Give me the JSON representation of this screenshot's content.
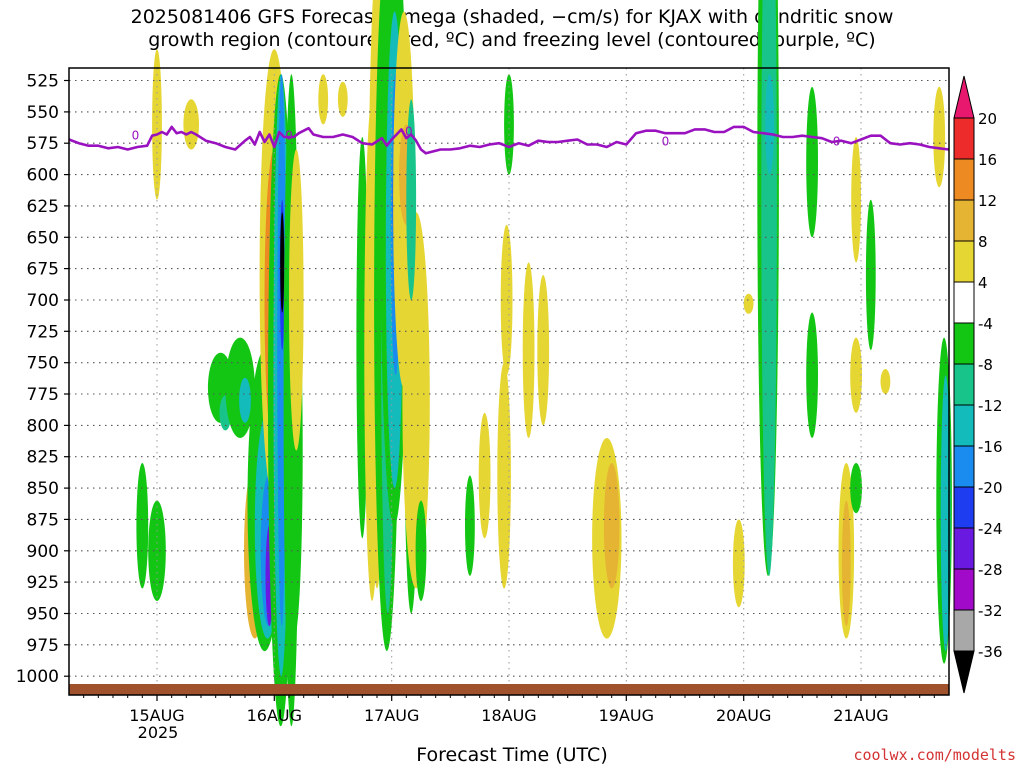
{
  "title": {
    "line1": "2025081406 GFS Forecast Omega (shaded, −cm/s) for KJAX with dendritic snow",
    "line2": "growth region (contoured, red, ºC) and freezing level (contoured, purple, ºC)"
  },
  "xlabel": "Forecast Time (UTC)",
  "credit": "coolwx.com/modelts",
  "year_label": "2025",
  "chart_data": {
    "type": "heatmap",
    "y_axis": {
      "label": "",
      "unit": "hPa",
      "inverted": true,
      "ticks": [
        525,
        550,
        575,
        600,
        625,
        650,
        675,
        700,
        725,
        750,
        775,
        800,
        825,
        850,
        875,
        900,
        925,
        950,
        975,
        1000
      ],
      "range": [
        515,
        1015
      ]
    },
    "x_axis": {
      "ticks": [
        {
          "label": "15AUG",
          "hours": 18
        },
        {
          "label": "16AUG",
          "hours": 42
        },
        {
          "label": "17AUG",
          "hours": 66
        },
        {
          "label": "18AUG",
          "hours": 90
        },
        {
          "label": "19AUG",
          "hours": 114
        },
        {
          "label": "20AUG",
          "hours": 138
        },
        {
          "label": "21AUG",
          "hours": 162
        }
      ],
      "range_hours": [
        0,
        180
      ]
    },
    "colorbar": {
      "ticks": [
        20,
        16,
        12,
        8,
        4,
        -4,
        -8,
        -12,
        -16,
        -20,
        -24,
        -28,
        -32,
        -36
      ],
      "bins": [
        {
          "from": 16,
          "to": 20,
          "color": "#ee2b2b"
        },
        {
          "from": 12,
          "to": 16,
          "color": "#ee8a22"
        },
        {
          "from": 8,
          "to": 12,
          "color": "#e6b433"
        },
        {
          "from": 4,
          "to": 8,
          "color": "#e6d633"
        },
        {
          "from": -4,
          "to": 4,
          "color": "#ffffff"
        },
        {
          "from": -8,
          "to": -4,
          "color": "#13c613"
        },
        {
          "from": -12,
          "to": -8,
          "color": "#19c48a"
        },
        {
          "from": -16,
          "to": -12,
          "color": "#13bbbb"
        },
        {
          "from": -20,
          "to": -16,
          "color": "#1a8cf0"
        },
        {
          "from": -24,
          "to": -20,
          "color": "#1e3cf0"
        },
        {
          "from": -28,
          "to": -24,
          "color": "#6a1ae0"
        },
        {
          "from": -32,
          "to": -28,
          "color": "#a00ac8"
        },
        {
          "from": -36,
          "to": -32,
          "color": "#a8a8a8"
        }
      ],
      "top_arrow_color": "#e8186e",
      "bottom_arrow_color": "#000000"
    },
    "freezing_level": {
      "color": "#9a12c0",
      "contour_label": "0",
      "hours": [
        0,
        2,
        4,
        6,
        8,
        10,
        12,
        14,
        16,
        17,
        18,
        19,
        20,
        21,
        22,
        23,
        24,
        25,
        26,
        28,
        30,
        32,
        34,
        36,
        37,
        38,
        39,
        40,
        41,
        42,
        43,
        44,
        45,
        46,
        47,
        48,
        49,
        50,
        52,
        54,
        56,
        58,
        60,
        62,
        64,
        65,
        66,
        67,
        68,
        69,
        70,
        71,
        72,
        73,
        74,
        76,
        78,
        80,
        82,
        84,
        86,
        88,
        90,
        92,
        94,
        96,
        98,
        100,
        102,
        104,
        106,
        108,
        110,
        112,
        114,
        116,
        118,
        120,
        122,
        124,
        126,
        128,
        130,
        132,
        134,
        136,
        138,
        140,
        142,
        144,
        146,
        148,
        150,
        152,
        154,
        156,
        158,
        160,
        162,
        164,
        166,
        168,
        170,
        172,
        174,
        176,
        178,
        180
      ],
      "pressure": [
        572,
        575,
        577,
        577,
        579,
        578,
        580,
        578,
        577,
        569,
        568,
        566,
        568,
        562,
        567,
        566,
        568,
        566,
        568,
        573,
        575,
        578,
        580,
        573,
        570,
        576,
        566,
        574,
        568,
        578,
        566,
        570,
        570,
        570,
        567,
        565,
        563,
        568,
        570,
        570,
        568,
        570,
        575,
        576,
        571,
        577,
        572,
        568,
        564,
        571,
        568,
        573,
        580,
        583,
        582,
        580,
        580,
        579,
        577,
        578,
        576,
        575,
        578,
        575,
        577,
        573,
        574,
        574,
        573,
        572,
        576,
        576,
        578,
        574,
        576,
        567,
        565,
        565,
        567,
        567,
        567,
        564,
        564,
        566,
        566,
        562,
        562,
        566,
        567,
        568,
        570,
        570,
        569,
        570,
        571,
        574,
        573,
        575,
        572,
        569,
        569,
        575,
        576,
        575,
        576,
        578,
        579,
        580
      ]
    }
  }
}
